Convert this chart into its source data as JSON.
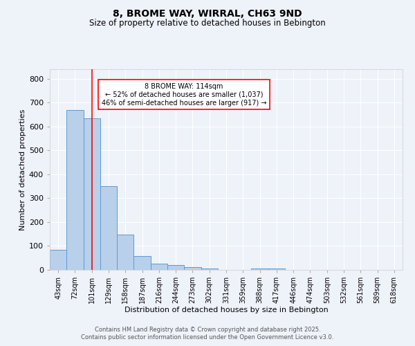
{
  "title": "8, BROME WAY, WIRRAL, CH63 9ND",
  "subtitle": "Size of property relative to detached houses in Bebington",
  "xlabel": "Distribution of detached houses by size in Bebington",
  "ylabel": "Number of detached properties",
  "categories": [
    "43sqm",
    "72sqm",
    "101sqm",
    "129sqm",
    "158sqm",
    "187sqm",
    "216sqm",
    "244sqm",
    "273sqm",
    "302sqm",
    "331sqm",
    "359sqm",
    "388sqm",
    "417sqm",
    "446sqm",
    "474sqm",
    "503sqm",
    "532sqm",
    "561sqm",
    "589sqm",
    "618sqm"
  ],
  "values": [
    85,
    670,
    635,
    350,
    148,
    58,
    25,
    20,
    12,
    5,
    0,
    0,
    5,
    5,
    0,
    0,
    0,
    0,
    0,
    0,
    0
  ],
  "bar_color": "#b8d0ea",
  "bar_edge_color": "#5b9bd5",
  "red_line_x": 2.0,
  "annotation_text": "8 BROME WAY: 114sqm\n← 52% of detached houses are smaller (1,037)\n46% of semi-detached houses are larger (917) →",
  "ylim": [
    0,
    840
  ],
  "yticks": [
    0,
    100,
    200,
    300,
    400,
    500,
    600,
    700,
    800
  ],
  "background_color": "#eef2f9",
  "grid_color": "#ffffff",
  "footer_line1": "Contains HM Land Registry data © Crown copyright and database right 2025.",
  "footer_line2": "Contains public sector information licensed under the Open Government Licence v3.0."
}
